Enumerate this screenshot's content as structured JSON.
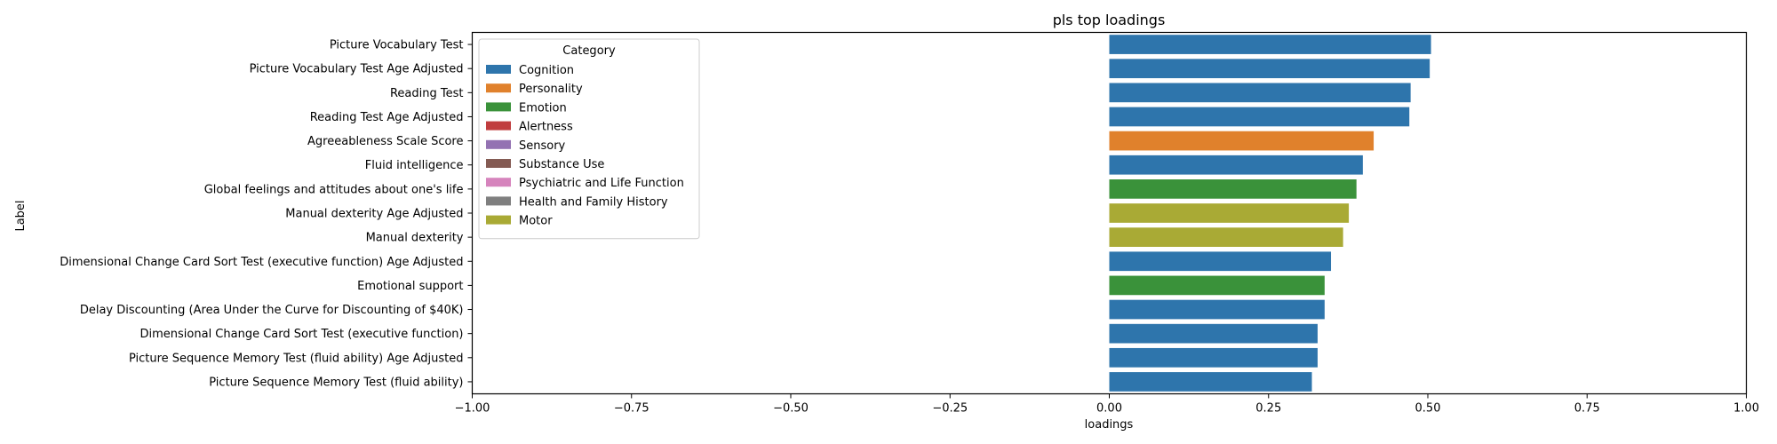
{
  "chart_data": {
    "type": "bar",
    "orientation": "horizontal",
    "title": "pls top loadings",
    "xlabel": "loadings",
    "ylabel": "Label",
    "xlim": [
      -1.0,
      1.0
    ],
    "xticks": [
      "−1.00",
      "−0.75",
      "−0.50",
      "−0.25",
      "0.00",
      "0.25",
      "0.50",
      "0.75",
      "1.00"
    ],
    "xtick_values": [
      -1.0,
      -0.75,
      -0.5,
      -0.25,
      0.0,
      0.25,
      0.5,
      0.75,
      1.0
    ],
    "grid": false,
    "legend": {
      "title": "Category",
      "placement": "upper-left",
      "entries": [
        {
          "name": "Cognition",
          "color": "#1f77b4"
        },
        {
          "name": "Personality",
          "color": "#ff7f0e"
        },
        {
          "name": "Emotion",
          "color": "#2ca02c"
        },
        {
          "name": "Alertness",
          "color": "#d62728"
        },
        {
          "name": "Sensory",
          "color": "#9467bd"
        },
        {
          "name": "Substance Use",
          "color": "#8c564b"
        },
        {
          "name": "Psychiatric and Life Function",
          "color": "#e377c2"
        },
        {
          "name": "Health and Family History",
          "color": "#7f7f7f"
        },
        {
          "name": "Motor",
          "color": "#bcbd22"
        }
      ]
    },
    "categories": [
      "Picture Vocabulary Test",
      "Picture Vocabulary Test Age Adjusted",
      "Reading Test",
      "Reading Test Age Adjusted",
      "Agreeableness Scale Score",
      "Fluid intelligence",
      "Global feelings and attitudes about one's life",
      "Manual dexterity Age Adjusted",
      "Manual dexterity",
      "Dimensional Change Card Sort Test (executive function) Age Adjusted",
      "Emotional support",
      "Delay Discounting (Area Under the Curve for Discounting of $40K)",
      "Dimensional Change Card Sort Test (executive function)",
      "Picture Sequence Memory Test (fluid ability) Age Adjusted",
      "Picture Sequence Memory Test (fluid ability)"
    ],
    "values": [
      0.505,
      0.503,
      0.473,
      0.471,
      0.415,
      0.398,
      0.388,
      0.376,
      0.367,
      0.348,
      0.338,
      0.338,
      0.327,
      0.327,
      0.318
    ],
    "bar_categories": [
      "Cognition",
      "Cognition",
      "Cognition",
      "Cognition",
      "Personality",
      "Cognition",
      "Emotion",
      "Motor",
      "Motor",
      "Cognition",
      "Emotion",
      "Cognition",
      "Cognition",
      "Cognition",
      "Cognition"
    ],
    "colors": {
      "Cognition": "#2e75ac",
      "Personality": "#e0812c",
      "Emotion": "#3a923a",
      "Alertness": "#c03d3e",
      "Sensory": "#9372b2",
      "Substance Use": "#845b53",
      "Psychiatric and Life Function": "#d684bd",
      "Health and Family History": "#7f7f7f",
      "Motor": "#a9aa35"
    }
  }
}
